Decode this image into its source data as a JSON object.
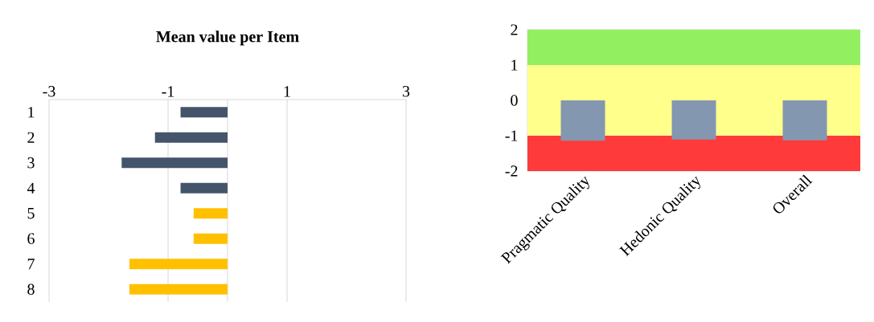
{
  "chart_data": [
    {
      "type": "bar",
      "orientation": "horizontal",
      "title": "Mean value per Item",
      "categories": [
        "1",
        "2",
        "3",
        "4",
        "5",
        "6",
        "7",
        "8"
      ],
      "values": [
        -0.79,
        -1.22,
        -1.78,
        -0.79,
        -0.57,
        -0.57,
        -1.65,
        -1.65
      ],
      "colors": [
        "#44546a",
        "#44546a",
        "#44546a",
        "#44546a",
        "#ffc000",
        "#ffc000",
        "#ffc000",
        "#ffc000"
      ],
      "xlim": [
        -3,
        3
      ],
      "xticks": [
        -3,
        -1,
        1,
        3
      ],
      "grid": "x"
    },
    {
      "type": "bar",
      "categories": [
        "Pragmatic Quality",
        "Hedonic Quality",
        "Overall"
      ],
      "values": [
        -1.14,
        -1.11,
        -1.13
      ],
      "color": "#8497b0",
      "ylim": [
        -2,
        2
      ],
      "yticks": [
        -2,
        -1,
        0,
        1,
        2
      ],
      "grid": "y",
      "bands": [
        {
          "axis": "y",
          "from": 1,
          "to": 2,
          "color": "#92f060"
        },
        {
          "axis": "y",
          "from": -1,
          "to": 1,
          "color": "#ffff8c"
        },
        {
          "axis": "y",
          "from": -2,
          "to": -1,
          "color": "#ff3a3a"
        }
      ]
    }
  ]
}
